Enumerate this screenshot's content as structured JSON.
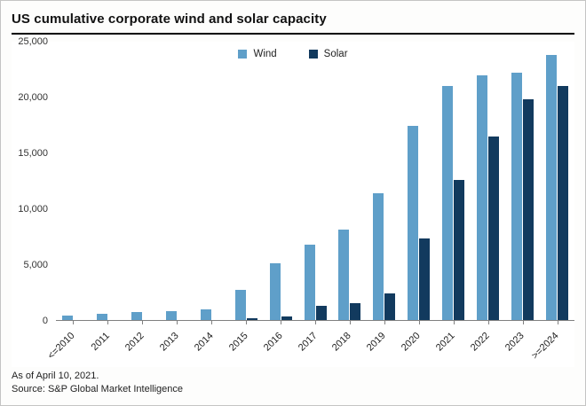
{
  "title": "US cumulative corporate wind and solar capacity",
  "footer": {
    "as_of": "As of April 10, 2021.",
    "source": "Source: S&P Global Market Intelligence"
  },
  "chart_data": {
    "type": "bar",
    "title": "US cumulative corporate wind and solar capacity",
    "categories": [
      "<=2010",
      "2011",
      "2012",
      "2013",
      "2014",
      "2015",
      "2016",
      "2017",
      "2018",
      "2019",
      "2020",
      "2021",
      "2022",
      "2023",
      ">=2024"
    ],
    "series": [
      {
        "name": "Wind",
        "color": "#5f9fc9",
        "values": [
          400,
          550,
          700,
          800,
          950,
          2700,
          5100,
          6800,
          8100,
          11400,
          17400,
          21000,
          22000,
          22200,
          23800
        ]
      },
      {
        "name": "Solar",
        "color": "#123a5e",
        "values": [
          0,
          0,
          0,
          0,
          0,
          150,
          350,
          1300,
          1550,
          2400,
          7300,
          12600,
          16500,
          19800,
          21000
        ]
      }
    ],
    "ylim": [
      0,
      25000
    ],
    "yticks": [
      0,
      5000,
      10000,
      15000,
      20000,
      25000
    ],
    "ytick_labels": [
      "0",
      "5,000",
      "10,000",
      "15,000",
      "20,000",
      "25,000"
    ],
    "xlabel": "",
    "ylabel": "",
    "grid": false,
    "legend_position": "top-center"
  }
}
